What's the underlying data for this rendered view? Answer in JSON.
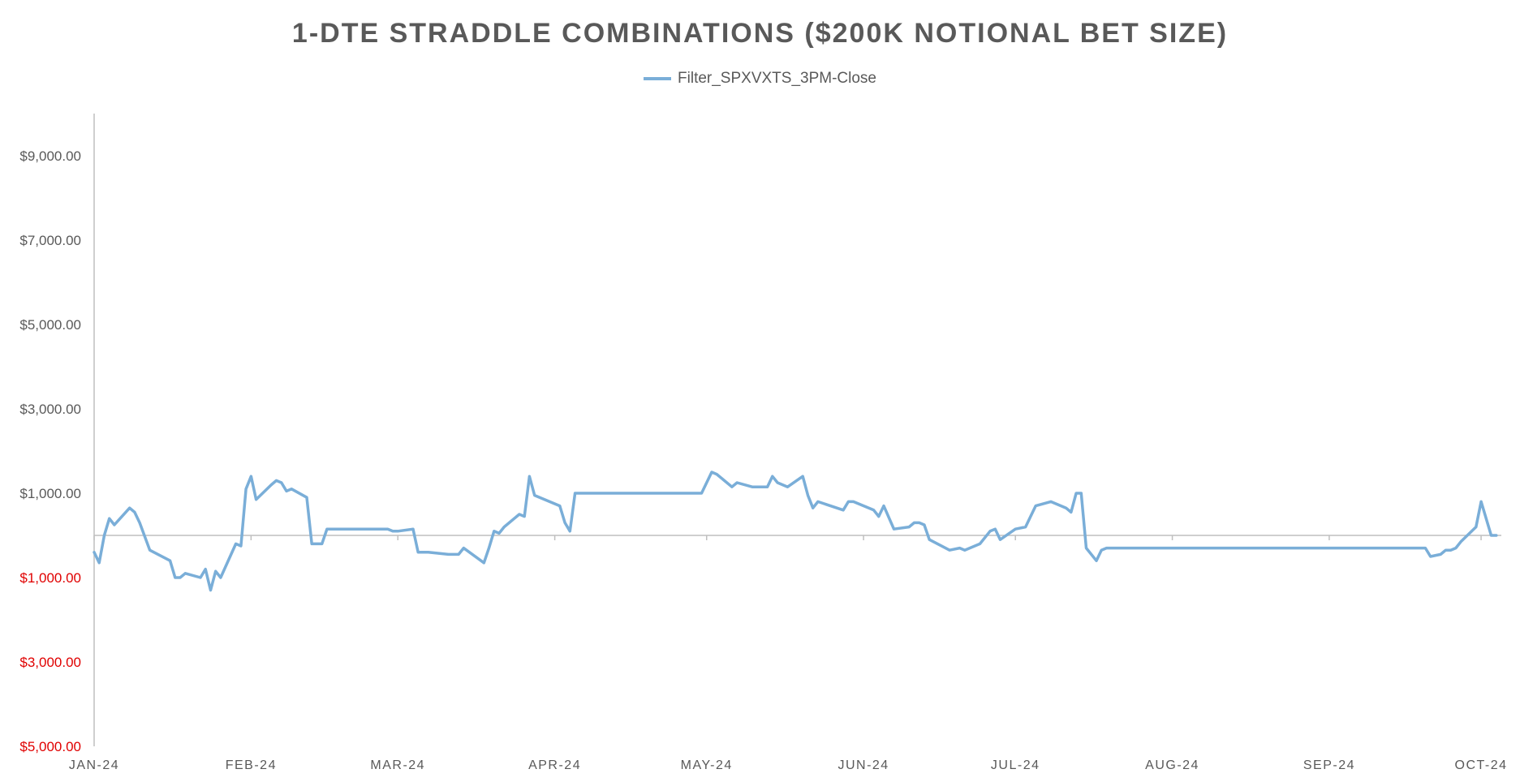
{
  "chart_data": {
    "type": "line",
    "title": "1-DTE STRADDLE COMBINATIONS ($200K NOTIONAL BET SIZE)",
    "xlabel": "",
    "ylabel": "",
    "legend_position": "top-center",
    "grid": false,
    "ylim": [
      -5000,
      10000
    ],
    "y_ticks": [
      {
        "value": 9000,
        "label": "$9,000.00",
        "color": "#595959"
      },
      {
        "value": 7000,
        "label": "$7,000.00",
        "color": "#595959"
      },
      {
        "value": 5000,
        "label": "$5,000.00",
        "color": "#595959"
      },
      {
        "value": 3000,
        "label": "$3,000.00",
        "color": "#595959"
      },
      {
        "value": 1000,
        "label": "$1,000.00",
        "color": "#595959"
      },
      {
        "value": -1000,
        "label": "$1,000.00",
        "color": "#e00000"
      },
      {
        "value": -3000,
        "label": "$3,000.00",
        "color": "#e00000"
      },
      {
        "value": -5000,
        "label": "$5,000.00",
        "color": "#e00000"
      }
    ],
    "x_ticks": [
      "JAN-24",
      "FEB-24",
      "MAR-24",
      "APR-24",
      "MAY-24",
      "JUN-24",
      "JUL-24",
      "AUG-24",
      "SEP-24",
      "OCT-24"
    ],
    "x_tick_dates": [
      "2024-01-01",
      "2024-02-01",
      "2024-03-01",
      "2024-04-01",
      "2024-05-01",
      "2024-06-01",
      "2024-07-01",
      "2024-08-01",
      "2024-09-01",
      "2024-10-01"
    ],
    "series": [
      {
        "name": "Filter_SPXVXTS_3PM-Close",
        "color": "#7aaed8",
        "points": [
          [
            "2024-01-01",
            -400
          ],
          [
            "2024-01-02",
            -650
          ],
          [
            "2024-01-03",
            0
          ],
          [
            "2024-01-04",
            400
          ],
          [
            "2024-01-05",
            250
          ],
          [
            "2024-01-08",
            650
          ],
          [
            "2024-01-09",
            550
          ],
          [
            "2024-01-10",
            300
          ],
          [
            "2024-01-12",
            -350
          ],
          [
            "2024-01-16",
            -600
          ],
          [
            "2024-01-17",
            -1000
          ],
          [
            "2024-01-18",
            -1000
          ],
          [
            "2024-01-19",
            -900
          ],
          [
            "2024-01-22",
            -1000
          ],
          [
            "2024-01-23",
            -800
          ],
          [
            "2024-01-24",
            -1300
          ],
          [
            "2024-01-25",
            -850
          ],
          [
            "2024-01-26",
            -1000
          ],
          [
            "2024-01-29",
            -200
          ],
          [
            "2024-01-30",
            -250
          ],
          [
            "2024-01-31",
            1100
          ],
          [
            "2024-02-01",
            1400
          ],
          [
            "2024-02-02",
            850
          ],
          [
            "2024-02-05",
            1200
          ],
          [
            "2024-02-06",
            1300
          ],
          [
            "2024-02-07",
            1250
          ],
          [
            "2024-02-08",
            1050
          ],
          [
            "2024-02-09",
            1100
          ],
          [
            "2024-02-12",
            900
          ],
          [
            "2024-02-13",
            -200
          ],
          [
            "2024-02-15",
            -200
          ],
          [
            "2024-02-16",
            150
          ],
          [
            "2024-02-28",
            150
          ],
          [
            "2024-02-29",
            100
          ],
          [
            "2024-03-01",
            100
          ],
          [
            "2024-03-04",
            150
          ],
          [
            "2024-03-05",
            -400
          ],
          [
            "2024-03-07",
            -400
          ],
          [
            "2024-03-11",
            -450
          ],
          [
            "2024-03-12",
            -450
          ],
          [
            "2024-03-13",
            -450
          ],
          [
            "2024-03-14",
            -300
          ],
          [
            "2024-03-18",
            -650
          ],
          [
            "2024-03-19",
            -300
          ],
          [
            "2024-03-20",
            100
          ],
          [
            "2024-03-21",
            50
          ],
          [
            "2024-03-22",
            200
          ],
          [
            "2024-03-25",
            500
          ],
          [
            "2024-03-26",
            450
          ],
          [
            "2024-03-27",
            1400
          ],
          [
            "2024-03-28",
            950
          ],
          [
            "2024-04-02",
            700
          ],
          [
            "2024-04-03",
            300
          ],
          [
            "2024-04-04",
            100
          ],
          [
            "2024-04-05",
            1000
          ],
          [
            "2024-04-30",
            1000
          ],
          [
            "2024-05-02",
            1500
          ],
          [
            "2024-05-03",
            1450
          ],
          [
            "2024-05-06",
            1150
          ],
          [
            "2024-05-07",
            1250
          ],
          [
            "2024-05-10",
            1150
          ],
          [
            "2024-05-13",
            1150
          ],
          [
            "2024-05-14",
            1400
          ],
          [
            "2024-05-15",
            1250
          ],
          [
            "2024-05-17",
            1150
          ],
          [
            "2024-05-20",
            1400
          ],
          [
            "2024-05-21",
            950
          ],
          [
            "2024-05-22",
            650
          ],
          [
            "2024-05-23",
            800
          ],
          [
            "2024-05-28",
            600
          ],
          [
            "2024-05-29",
            800
          ],
          [
            "2024-05-30",
            800
          ],
          [
            "2024-06-03",
            600
          ],
          [
            "2024-06-04",
            450
          ],
          [
            "2024-06-05",
            700
          ],
          [
            "2024-06-07",
            150
          ],
          [
            "2024-06-10",
            200
          ],
          [
            "2024-06-11",
            300
          ],
          [
            "2024-06-12",
            300
          ],
          [
            "2024-06-13",
            250
          ],
          [
            "2024-06-14",
            -100
          ],
          [
            "2024-06-18",
            -350
          ],
          [
            "2024-06-20",
            -300
          ],
          [
            "2024-06-21",
            -350
          ],
          [
            "2024-06-24",
            -200
          ],
          [
            "2024-06-26",
            100
          ],
          [
            "2024-06-27",
            150
          ],
          [
            "2024-06-28",
            -100
          ],
          [
            "2024-07-01",
            150
          ],
          [
            "2024-07-03",
            200
          ],
          [
            "2024-07-05",
            700
          ],
          [
            "2024-07-08",
            800
          ],
          [
            "2024-07-11",
            650
          ],
          [
            "2024-07-12",
            550
          ],
          [
            "2024-07-13",
            1000
          ],
          [
            "2024-07-14",
            1000
          ],
          [
            "2024-07-15",
            -300
          ],
          [
            "2024-07-17",
            -600
          ],
          [
            "2024-07-18",
            -350
          ],
          [
            "2024-07-19",
            -300
          ],
          [
            "2024-09-20",
            -300
          ],
          [
            "2024-09-21",
            -500
          ],
          [
            "2024-09-23",
            -450
          ],
          [
            "2024-09-24",
            -350
          ],
          [
            "2024-09-25",
            -350
          ],
          [
            "2024-09-26",
            -300
          ],
          [
            "2024-09-27",
            -150
          ],
          [
            "2024-09-30",
            200
          ],
          [
            "2024-10-01",
            800
          ],
          [
            "2024-10-02",
            400
          ],
          [
            "2024-10-03",
            0
          ],
          [
            "2024-10-04",
            0
          ]
        ]
      }
    ]
  }
}
